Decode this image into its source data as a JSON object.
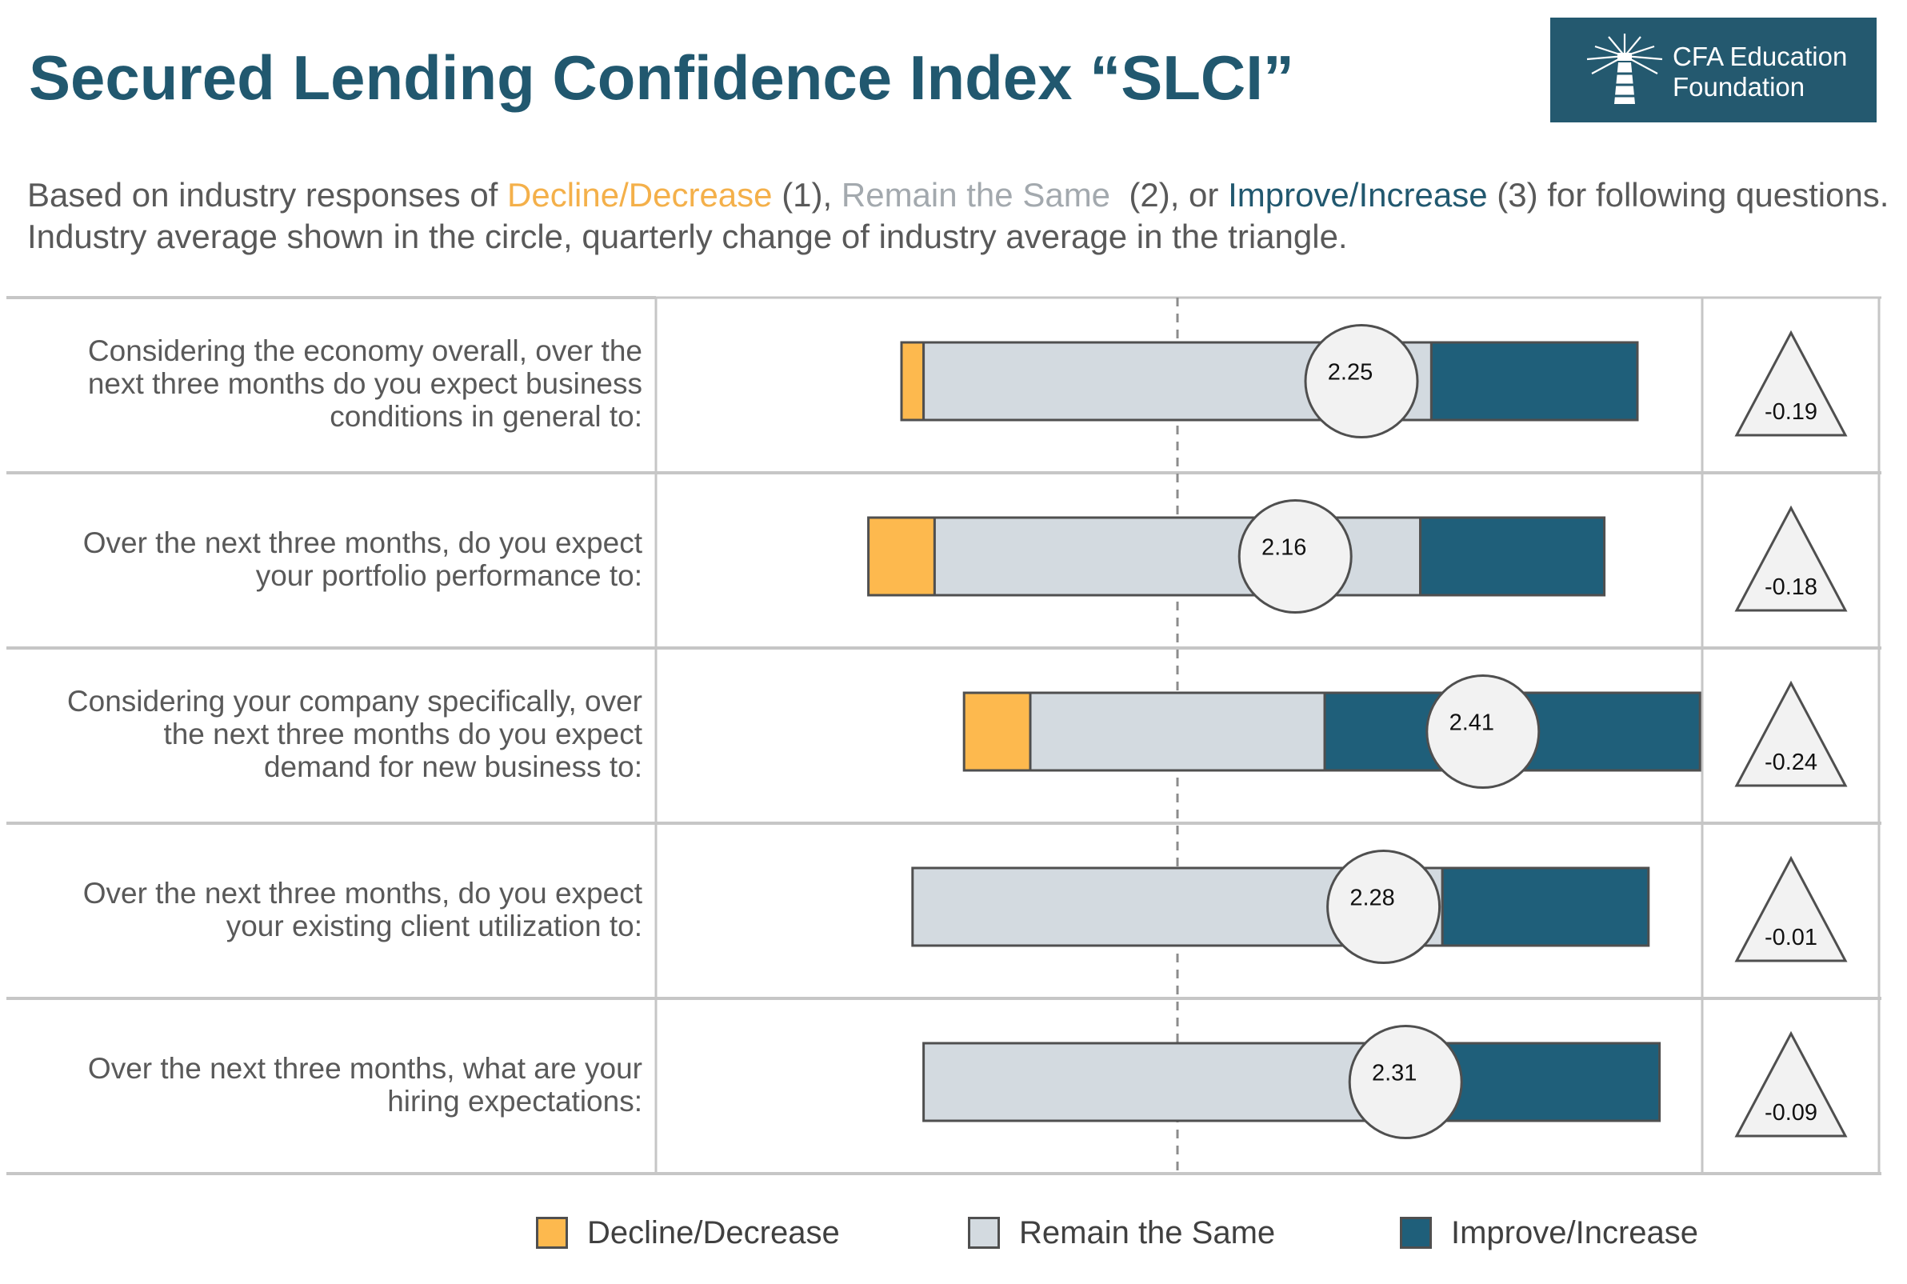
{
  "header": {
    "title": "Secured Lending Confidence Index “SLCI”",
    "logo_line1": "CFA Education",
    "logo_line2": "Foundation",
    "logo_icon": "lighthouse-icon"
  },
  "subtitle": {
    "line1_prefix": "Based on industry responses of ",
    "decline": "Decline/Decrease",
    "part1": " (1), ",
    "same": "Remain the Same",
    "part2": "  (2), or ",
    "improve": "Improve/Increase",
    "line1_suffix": " (3) for following questions.",
    "line2": "Industry average shown in the circle, quarterly change of industry average in the triangle."
  },
  "colors": {
    "decline": "#fdb94e",
    "same": "#d3dae0",
    "improve": "#1f5f7a",
    "title": "#21586f",
    "circle": "#f2f2f2"
  },
  "legend": {
    "decline": "Decline/Decrease",
    "same": "Remain the Same",
    "improve": "Improve/Increase"
  },
  "chart_data": {
    "type": "bar",
    "orientation": "horizontal",
    "stacked": true,
    "diverging": true,
    "center_reference": "dashed vertical line",
    "categories": [
      "Considering the economy overall, over the next three months do you expect business conditions in general to:",
      "Over the next three months, do you expect your portfolio performance to:",
      "Considering your company specifically, over the next three months do you expect demand for new business to:",
      "Over the next three months, do you expect your existing client utilization to:",
      "Over the next three months, what are your hiring expectations:"
    ],
    "question_lines": [
      [
        "Considering the economy overall, over the",
        "next three months do you expect business",
        "conditions in general to:"
      ],
      [
        "Over the next three months, do you expect",
        "your portfolio performance to:"
      ],
      [
        "Considering your company specifically, over",
        "the next three months do you expect",
        "demand for new business to:"
      ],
      [
        "Over the next three months, do you expect",
        "your existing client utilization to:"
      ],
      [
        "Over the next three months, what are your",
        "hiring expectations:"
      ]
    ],
    "series": [
      {
        "name": "Decline/Decrease",
        "values": [
          3,
          9,
          9,
          0,
          0
        ]
      },
      {
        "name": "Remain the Same",
        "values": [
          69,
          66,
          40,
          72,
          69
        ]
      },
      {
        "name": "Improve/Increase",
        "values": [
          28,
          25,
          51,
          28,
          31
        ]
      }
    ],
    "averages": [
      "2.25",
      "2.16",
      "2.41",
      "2.28",
      "2.31"
    ],
    "quarterly_change": [
      "-0.19",
      "-0.18",
      "-0.24",
      "-0.01",
      "-0.09"
    ],
    "scale": "Decline/Decrease = 1, Remain the Same = 2, Improve/Increase = 3"
  }
}
